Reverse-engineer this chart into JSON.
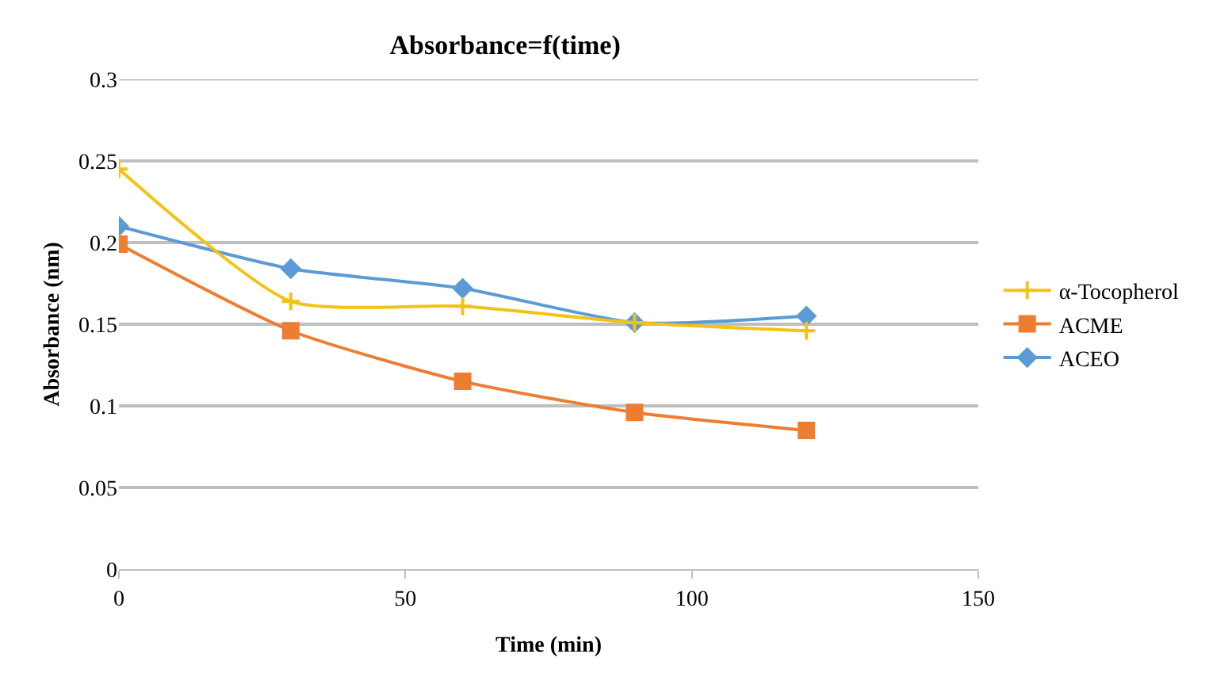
{
  "chart_data": {
    "type": "line",
    "title": "Absorbance=f(time)",
    "xlabel": "Time (min)",
    "ylabel": "Absorbance (nm)",
    "x": [
      0,
      30,
      60,
      90,
      120
    ],
    "series": [
      {
        "name": "α-Tocopherol",
        "color": "#f2c314",
        "marker": "cross",
        "values": [
          0.245,
          0.164,
          0.161,
          0.151,
          0.146
        ]
      },
      {
        "name": "ACME",
        "color": "#ed7d31",
        "marker": "square",
        "values": [
          0.199,
          0.146,
          0.115,
          0.096,
          0.085
        ]
      },
      {
        "name": "ACEO",
        "color": "#5b9bd5",
        "marker": "diamond",
        "values": [
          0.21,
          0.184,
          0.172,
          0.151,
          0.155
        ]
      }
    ],
    "xlim": [
      0,
      150
    ],
    "xticks": [
      0,
      50,
      100,
      150
    ],
    "ylim": [
      0,
      0.3
    ],
    "yticks": [
      0,
      0.05,
      0.1,
      0.15,
      0.2,
      0.25,
      0.3
    ],
    "grid": "y",
    "legend": "right"
  }
}
